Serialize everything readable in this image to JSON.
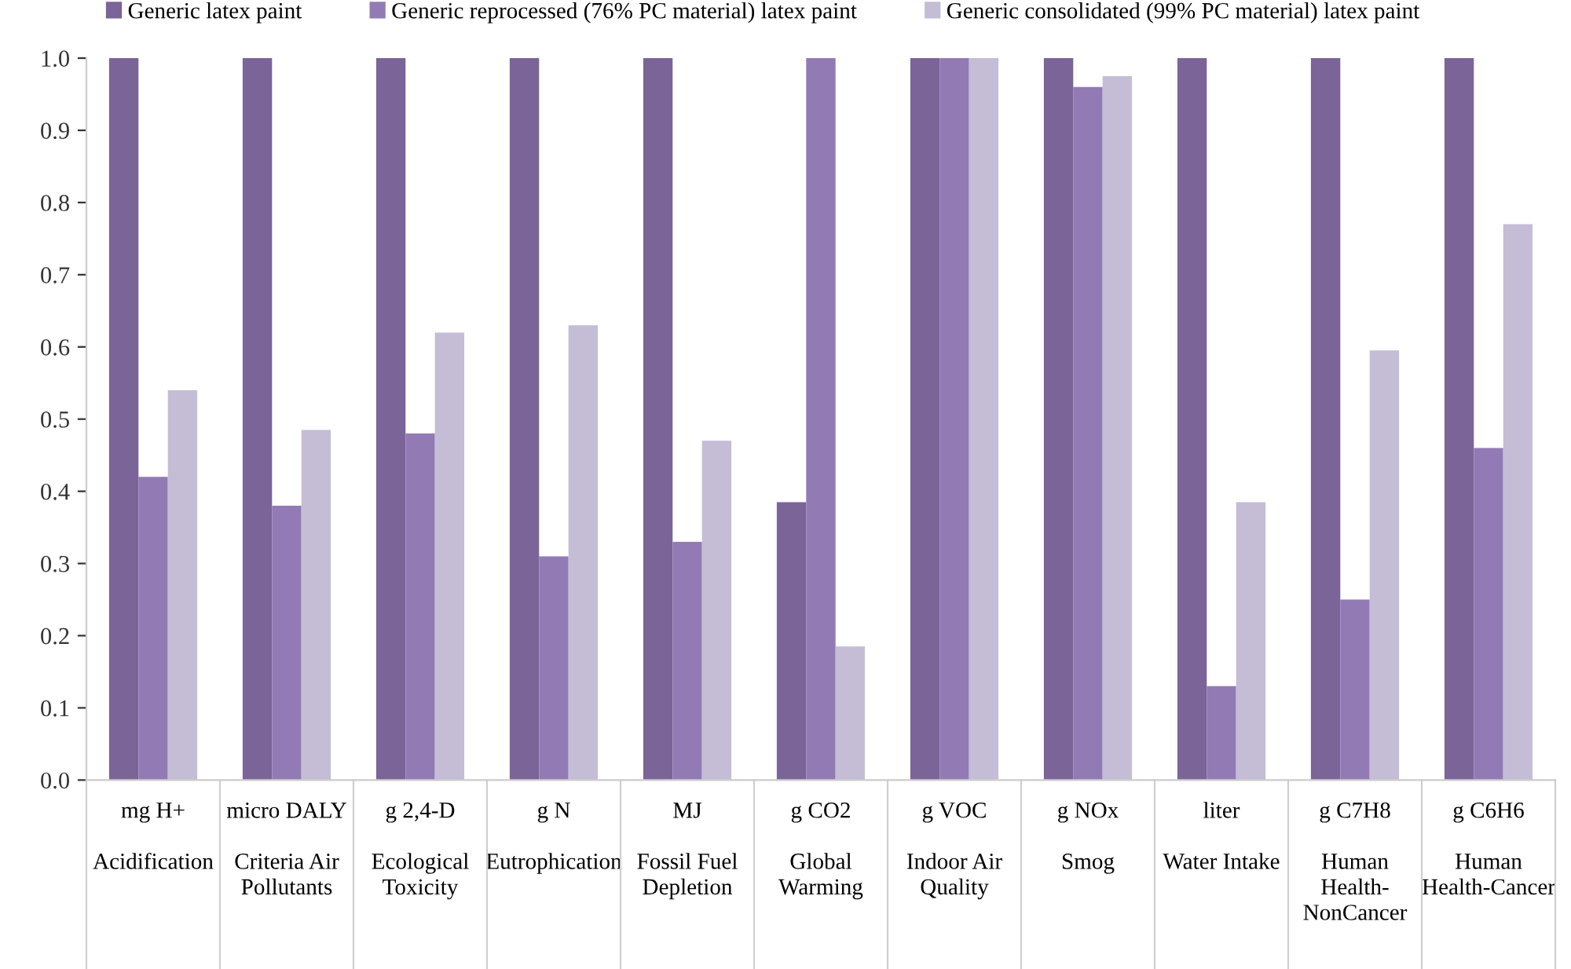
{
  "chart_data": {
    "type": "bar",
    "categories": [
      "mg H+\n\nAcidification",
      "micro DALY\n\nCriteria Air\nPollutants",
      "g 2,4-D\n\nEcological\nToxicity",
      "g N\n\nEutrophication",
      "MJ\n\nFossil Fuel\nDepletion",
      "g CO2\n\nGlobal\nWarming",
      "g VOC\n\nIndoor Air\nQuality",
      "g NOx\n\nSmog",
      "liter\n\nWater Intake",
      "g C7H8\n\nHuman\nHealth-\nNonCancer",
      "g C6H6\n\nHuman\nHealth-Cancer"
    ],
    "series": [
      {
        "name": "Generic latex paint",
        "color": "#7b6497",
        "values": [
          1.0,
          1.0,
          1.0,
          1.0,
          1.0,
          0.385,
          1.0,
          1.0,
          1.0,
          1.0,
          1.0
        ]
      },
      {
        "name": "Generic reprocessed (76% PC material) latex paint",
        "color": "#927bb4",
        "values": [
          0.42,
          0.38,
          0.48,
          0.31,
          0.33,
          1.0,
          1.0,
          0.96,
          0.13,
          0.25,
          0.46
        ]
      },
      {
        "name": "Generic consolidated (99% PC material) latex paint",
        "color": "#c5bcd6",
        "values": [
          0.54,
          0.485,
          0.62,
          0.63,
          0.47,
          0.185,
          1.0,
          0.975,
          0.385,
          0.595,
          0.77
        ]
      }
    ],
    "ylim": [
      0,
      1.0
    ],
    "yticks": [
      {
        "value": 0,
        "label": "0.0"
      },
      {
        "value": 0.1,
        "label": "0.1"
      },
      {
        "value": 0.2,
        "label": "0.2"
      },
      {
        "value": 0.3,
        "label": "0.3"
      },
      {
        "value": 0.4,
        "label": "0.4"
      },
      {
        "value": 0.5,
        "label": "0.5"
      },
      {
        "value": 0.6,
        "label": "0.6"
      },
      {
        "value": 0.7,
        "label": "0.7"
      },
      {
        "value": 0.8,
        "label": "0.8"
      },
      {
        "value": 0.9,
        "label": "0.9"
      },
      {
        "value": 1.0,
        "label": "1.0"
      }
    ],
    "grid": false,
    "legend": "top"
  }
}
